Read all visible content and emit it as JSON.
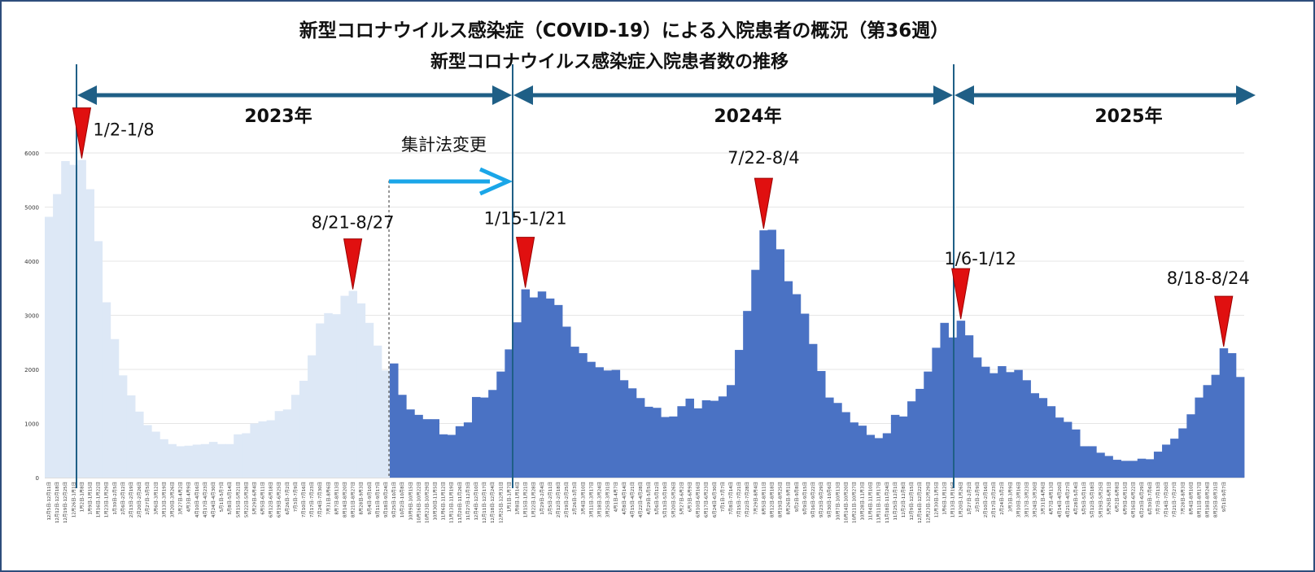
{
  "chart_data": {
    "type": "bar",
    "title": "新型コロナウイルス感染症（COVID-19）による入院患者の概況（第36週）",
    "subtitle": "新型コロナウイルス感染症入院患者数の推移",
    "ylim": [
      0,
      6000
    ],
    "yticks": [
      "0",
      "1000",
      "2000",
      "3000",
      "4000",
      "5000",
      "6000"
    ],
    "grid": true,
    "series": [
      {
        "color": "#dde8f6",
        "values": [
          4820,
          5240,
          5850,
          5780,
          5870,
          5330,
          4370,
          3240,
          2560,
          1890,
          1520,
          1220,
          970,
          850,
          710,
          620,
          580,
          590,
          610,
          620,
          660,
          620,
          620,
          800,
          820,
          1000,
          1040,
          1060,
          1230,
          1260,
          1530,
          1790,
          2260,
          2850,
          3040,
          3020,
          3360,
          3450,
          3220,
          2860,
          2440,
          1980
        ]
      },
      {
        "color": "#4a72c4",
        "values": [
          2110,
          1530,
          1260,
          1160,
          1080,
          1080,
          800,
          790,
          950,
          1020,
          1490,
          1480,
          1620,
          1960,
          2370,
          2870,
          3480,
          3330,
          3440,
          3310,
          3190,
          2790,
          2420,
          2300,
          2140,
          2040,
          1980,
          1990,
          1800,
          1650,
          1470,
          1310,
          1290,
          1120,
          1130,
          1320,
          1460,
          1280,
          1430,
          1420,
          1500,
          1710,
          2360,
          3080,
          3840,
          4570,
          4580,
          4220,
          3630,
          3390,
          3030,
          2470,
          1970,
          1480,
          1380,
          1210,
          1020,
          960,
          790,
          730,
          820,
          1160,
          1130,
          1410,
          1640,
          1960,
          2400,
          2860,
          2590,
          2900,
          2630,
          2220,
          2050,
          1930,
          2060,
          1950,
          1990,
          1800,
          1560,
          1470,
          1320,
          1110,
          1030,
          890,
          580,
          580,
          460,
          400,
          330,
          310,
          310,
          350,
          340,
          480,
          610,
          720,
          910,
          1170,
          1480,
          1710,
          1900,
          2390,
          2300,
          1860
        ]
      }
    ],
    "years": [
      "2023年",
      "2024年",
      "2025年"
    ],
    "annotations": [
      {
        "label": "1/2-1/8",
        "series": 0,
        "index": 4
      },
      {
        "label": "8/21-8/27",
        "series": 0,
        "index": 37
      },
      {
        "label": "1/15-1/21",
        "series": 1,
        "index": 16
      },
      {
        "label": "7/22-8/4",
        "series": 1,
        "index": 45
      },
      {
        "label": "1/6-1/12",
        "series": 1,
        "index": 69
      },
      {
        "label": "8/18-8/24",
        "series": 1,
        "index": 101
      }
    ],
    "method_change_label": "集計法変更",
    "x_tick_labels": [
      "12月5日-12月11日",
      "12月12日-12月18日",
      "12月19日-12月25日",
      "12月26日-1月1日",
      "1月2日-1月8日",
      "1月9日-1月15日",
      "1月16日-1月22日",
      "1月23日-1月29日",
      "1月30日-2月5日",
      "2月6日-2月12日",
      "2月13日-2月19日",
      "2月20日-2月26日",
      "2月27日-3月5日",
      "3月6日-3月12日",
      "3月13日-3月19日",
      "3月20日-3月26日",
      "3月27日-4月2日",
      "4月3日-4月9日",
      "4月10日-4月16日",
      "4月17日-4月23日",
      "4月24日-4月30日",
      "5月1日-5月7日",
      "5月8日-5月14日",
      "5月15日-5月21日",
      "5月22日-5月28日",
      "5月29日-6月4日",
      "6月5日-6月11日",
      "6月12日-6月18日",
      "6月19日-6月25日",
      "6月26日-7月2日",
      "7月3日-7月9日",
      "7月10日-7月16日",
      "7月17日-7月23日",
      "7月24日-7月30日",
      "7月31日-8月6日",
      "8月7日-8月13日",
      "8月14日-8月20日",
      "8月21日-8月27日",
      "8月28日-9月3日",
      "9月4日-9月10日",
      "9月11日-9月17日",
      "9月18日-9月24日",
      "9月25日-10月1日",
      "10月2日-10月8日",
      "10月9日-10月15日",
      "10月16日-10月22日",
      "10月23日-10月29日",
      "10月30日-11月5日",
      "11月6日-11月12日",
      "11月13日-11月19日",
      "11月20日-11月26日",
      "11月27日-12月3日",
      "12月4日-12月10日",
      "12月11日-12月17日",
      "12月18日-12月24日",
      "12月25日-12月31日",
      "1月1日-1月7日",
      "1月8日-1月14日",
      "1月15日-1月21日",
      "1月22日-1月28日",
      "1月29日-2月4日",
      "2月5日-2月11日",
      "2月12日-2月18日",
      "2月19日-2月25日",
      "2月26日-3月3日",
      "3月4日-3月10日",
      "3月11日-3月17日",
      "3月18日-3月24日",
      "3月25日-3月31日",
      "4月1日-4月7日",
      "4月8日-4月14日",
      "4月15日-4月21日",
      "4月22日-4月28日",
      "4月29日-5月5日",
      "5月6日-5月12日",
      "5月13日-5月19日",
      "5月20日-5月26日",
      "5月27日-6月2日",
      "6月3日-6月9日",
      "6月10日-6月16日",
      "6月17日-6月23日",
      "6月24日-6月30日",
      "7月1日-7月7日",
      "7月8日-7月14日",
      "7月15日-7月21日",
      "7月22日-7月28日",
      "7月29日-8月4日",
      "8月5日-8月11日",
      "8月12日-8月18日",
      "8月19日-8月25日",
      "8月26日-9月1日",
      "9月2日-9月8日",
      "9月9日-9月15日",
      "9月16日-9月22日",
      "9月23日-9月29日",
      "9月30日-10月6日",
      "10月7日-10月13日",
      "10月14日-10月20日",
      "10月21日-10月27日",
      "10月28日-11月3日",
      "11月4日-11月10日",
      "11月11日-11月17日",
      "11月18日-11月24日",
      "11月25日-12月1日",
      "12月2日-12月8日",
      "12月9日-12月15日",
      "12月16日-12月22日",
      "12月23日-12月29日",
      "12月30日-1月5日",
      "1月6日-1月12日",
      "1月13日-1月19日",
      "1月20日-1月26日",
      "1月27日-2月2日",
      "2月3日-2月9日",
      "2月10日-2月16日",
      "2月17日-2月23日",
      "2月24日-3月2日",
      "3月3日-3月9日",
      "3月10日-3月16日",
      "3月17日-3月23日",
      "3月24日-3月30日",
      "3月31日-4月6日",
      "4月7日-4月13日",
      "4月14日-4月20日",
      "4月21日-4月27日",
      "4月28日-5月4日",
      "5月5日-5月11日",
      "5月12日-5月18日",
      "5月19日-5月25日",
      "5月26日-6月1日",
      "6月2日-6月8日",
      "6月9日-6月15日",
      "6月16日-6月22日",
      "6月23日-6月29日",
      "6月30日-7月6日",
      "7月7日-7月13日",
      "7月14日-7月20日",
      "7月21日-7月27日",
      "7月28日-8月3日",
      "8月4日-8月10日",
      "8月11日-8月17日",
      "8月18日-8月24日",
      "8月25日-8月31日",
      "9月1日-9月7日"
    ]
  },
  "colors": {
    "arrow": "#1f5f86",
    "marker": "#e01010",
    "method_arrow": "#1aa6e8",
    "grid": "#e6e6e6"
  }
}
